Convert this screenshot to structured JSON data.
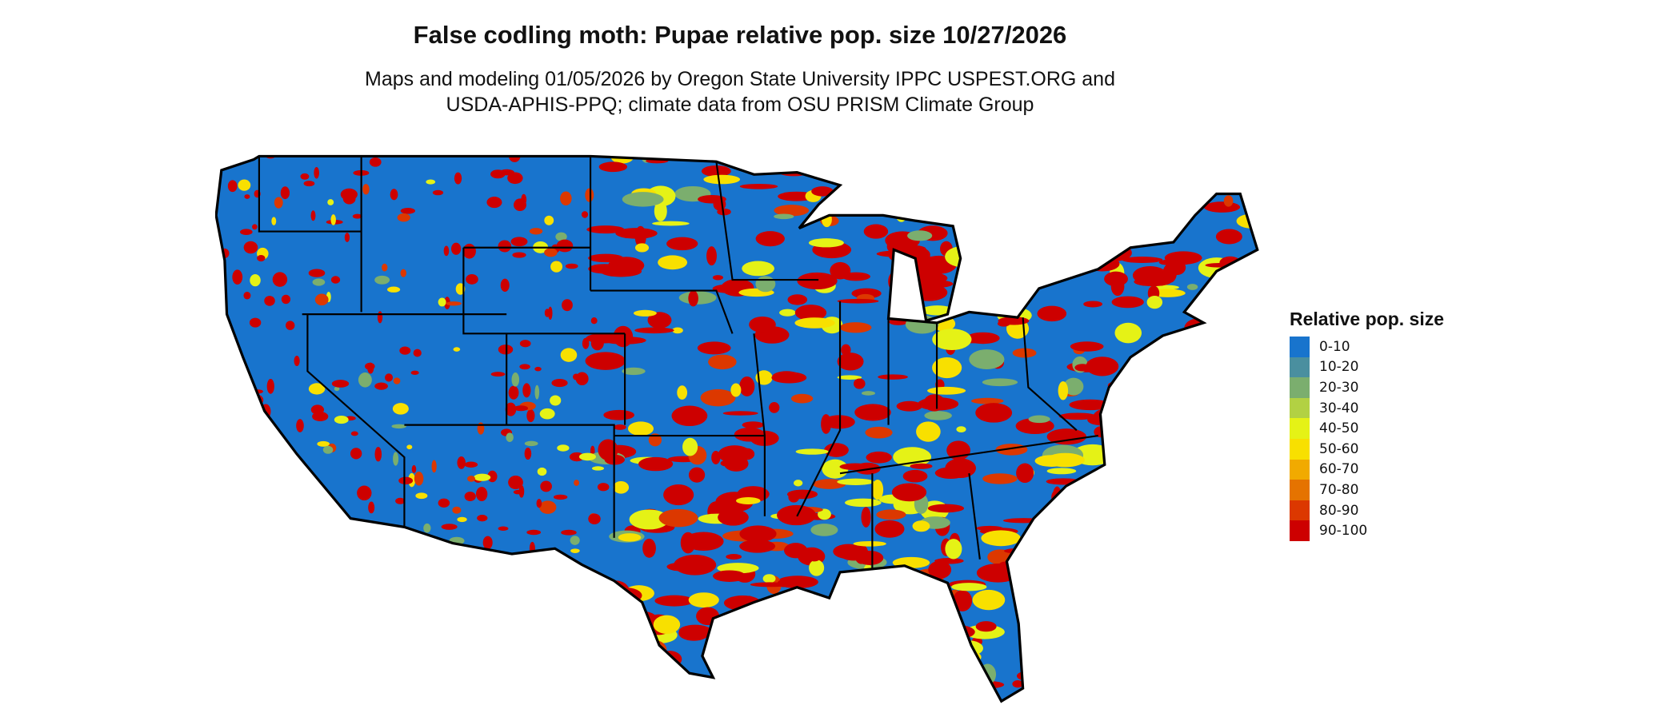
{
  "title": "False codling moth: Pupae relative pop. size 10/27/2026",
  "subtitle_line1": "Maps and modeling 01/05/2026 by Oregon State University IPPC USPEST.ORG and",
  "subtitle_line2": "USDA-APHIS-PPQ; climate data from OSU PRISM Climate Group",
  "map": {
    "region": "Contiguous United States",
    "boundaries": "state outlines",
    "dominant_class": "0-10"
  },
  "legend": {
    "title": "Relative pop. size",
    "placement": "right",
    "items": [
      {
        "label": "0-10",
        "color": "#1874cd"
      },
      {
        "label": "10-20",
        "color": "#4a8f9f"
      },
      {
        "label": "20-30",
        "color": "#7bae6e"
      },
      {
        "label": "30-40",
        "color": "#b2d143"
      },
      {
        "label": "40-50",
        "color": "#e5f216"
      },
      {
        "label": "50-60",
        "color": "#f8e000"
      },
      {
        "label": "60-70",
        "color": "#f1aa00"
      },
      {
        "label": "70-80",
        "color": "#e57300"
      },
      {
        "label": "80-90",
        "color": "#dc3800"
      },
      {
        "label": "90-100",
        "color": "#cd0000"
      }
    ]
  }
}
